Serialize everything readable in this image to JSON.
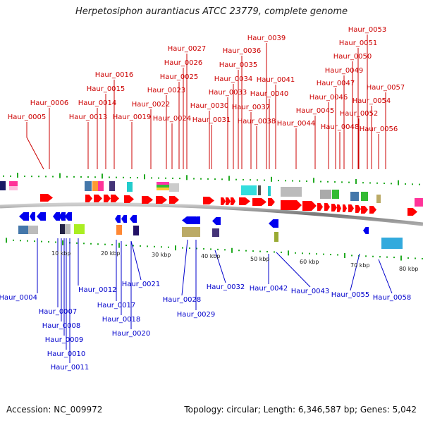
{
  "title": "Herpetosiphon aurantiacus ATCC 23779, complete genome",
  "footer": {
    "accession": "Accession: NC_009972",
    "topology": "Topology: circular; Length: 6,346,587 bp; Genes: 5,042"
  },
  "scale_labels": [
    "10 kbp",
    "20 kbp",
    "30 kbp",
    "40 kbp",
    "50 kbp",
    "60 kbp",
    "70 kbp",
    "80 kbp"
  ],
  "forward_genes": [
    "Haur_0005",
    "Haur_0006",
    "Haur_0013",
    "Haur_0014",
    "Haur_0015",
    "Haur_0016",
    "Haur_0019",
    "Haur_0022",
    "Haur_0023",
    "Haur_0024",
    "Haur_0025",
    "Haur_0026",
    "Haur_0027",
    "Haur_0030",
    "Haur_0031",
    "Haur_0033",
    "Haur_0034",
    "Haur_0035",
    "Haur_0036",
    "Haur_0037",
    "Haur_0038",
    "Haur_0039",
    "Haur_0040",
    "Haur_0041",
    "Haur_0044",
    "Haur_0045",
    "Haur_0046",
    "Haur_0047",
    "Haur_0048",
    "Haur_0049",
    "Haur_0050",
    "Haur_0051",
    "Haur_0052",
    "Haur_0053",
    "Haur_0054",
    "Haur_0056",
    "Haur_0057"
  ],
  "reverse_genes": [
    "Haur_0004",
    "Haur_0007",
    "Haur_0008",
    "Haur_0009",
    "Haur_0010",
    "Haur_0011",
    "Haur_0012",
    "Haur_0017",
    "Haur_0018",
    "Haur_0020",
    "Haur_0021",
    "Haur_0028",
    "Haur_0029",
    "Haur_0032",
    "Haur_0042",
    "Haur_0043",
    "Haur_0055",
    "Haur_0058"
  ],
  "colors": {
    "forward": "#cc0000",
    "reverse": "#0000cc",
    "forward_gene": "#ff0000",
    "reverse_gene": "#0000ee",
    "backbone": "#888888",
    "tick": "#22aa22"
  }
}
